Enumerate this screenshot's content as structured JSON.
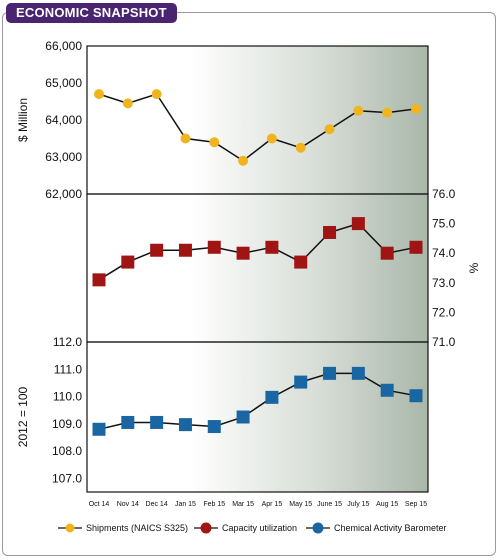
{
  "header": {
    "title": "ECONOMIC SNAPSHOT"
  },
  "colors": {
    "shipments": "#f0b51e",
    "capacity": "#a01414",
    "barometer": "#1a66a3",
    "header_bg": "#4a2470"
  },
  "chart_data": {
    "type": "line",
    "categories": [
      "Oct 14",
      "Nov 14",
      "Dec 14",
      "Jan 15",
      "Feb 15",
      "Mar 15",
      "Apr 15",
      "May 15",
      "June 15",
      "July 15",
      "Aug 15",
      "Sep 15"
    ],
    "panels": [
      {
        "series_name": "Shipments (NAICS S325)",
        "ylabel": "$ Million",
        "axis_side": "left",
        "ylim": [
          62000,
          66000
        ],
        "ticks": [
          "62,000",
          "63,000",
          "64,000",
          "65,000",
          "66,000"
        ],
        "tick_values": [
          62000,
          63000,
          64000,
          65000,
          66000
        ],
        "marker": "circle",
        "values": [
          64700,
          64450,
          64700,
          63500,
          63400,
          62900,
          63500,
          63250,
          63750,
          64250,
          64200,
          64300
        ]
      },
      {
        "series_name": "Capacity utilization",
        "ylabel": "%",
        "axis_side": "right",
        "ylim": [
          71.0,
          76.0
        ],
        "ticks": [
          "71.0",
          "72.0",
          "73.0",
          "74.0",
          "75.0",
          "76.0"
        ],
        "tick_values": [
          71,
          72,
          73,
          74,
          75,
          76
        ],
        "marker": "square",
        "values": [
          73.1,
          73.7,
          74.1,
          74.1,
          74.2,
          74.0,
          74.2,
          73.7,
          74.7,
          75.0,
          74.0,
          74.2
        ]
      },
      {
        "series_name": "Chemical Activity Barometer",
        "ylabel": "2012 = 100",
        "axis_side": "left",
        "ylim": [
          106.5,
          112.0
        ],
        "ticks": [
          "107.0",
          "108.0",
          "109.0",
          "110.0",
          "111.0",
          "112.0"
        ],
        "tick_values": [
          107,
          108,
          109,
          110,
          111,
          112
        ],
        "marker": "square",
        "values": [
          108.8,
          109.05,
          109.05,
          108.97,
          108.9,
          109.25,
          109.97,
          110.53,
          110.85,
          110.85,
          110.23,
          110.03
        ]
      }
    ],
    "legend": [
      {
        "label": "Shipments (NAICS S325)",
        "marker": "circle"
      },
      {
        "label": "Capacity utilization",
        "marker": "square"
      },
      {
        "label": "Chemical Activity Barometer",
        "marker": "square"
      }
    ],
    "legend_position": "bottom",
    "grid": false
  }
}
